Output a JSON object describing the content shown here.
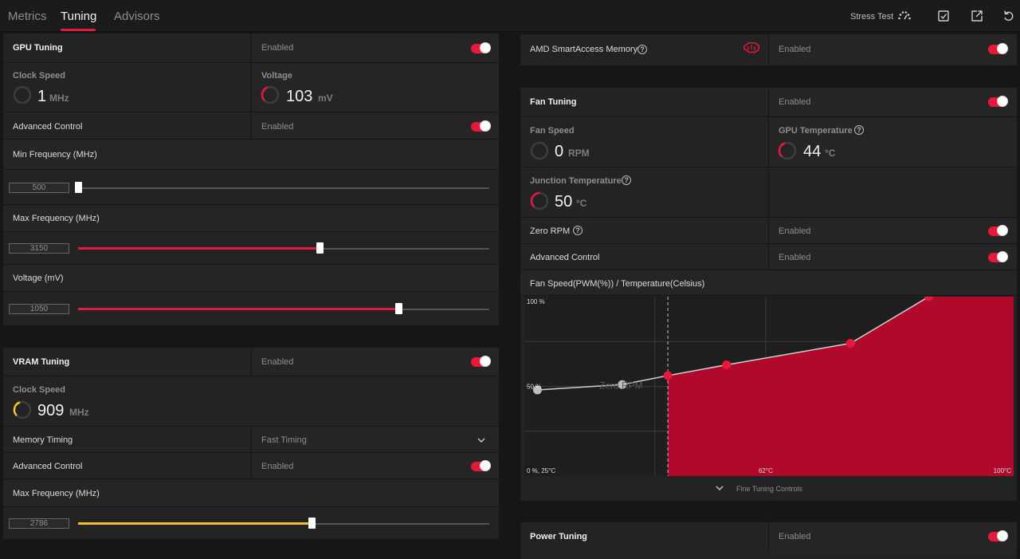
{
  "tabs": [
    "Metrics",
    "Tuning",
    "Advisors"
  ],
  "toolbar": {
    "stress_test": "Stress Test"
  },
  "gpu_tuning": {
    "title": "GPU Tuning",
    "status": "Enabled",
    "clock_label": "Clock Speed",
    "clock_value": "1",
    "clock_unit": "MHz",
    "voltage_label": "Voltage",
    "voltage_value": "103",
    "voltage_unit": "mV",
    "advanced_label": "Advanced Control",
    "advanced_status": "Enabled",
    "min_freq_label": "Min Frequency (MHz)",
    "min_freq_value": "500",
    "min_freq_fraction": 0.0,
    "max_freq_label": "Max Frequency (MHz)",
    "max_freq_value": "3150",
    "max_freq_fraction": 0.588,
    "voltage_slider_label": "Voltage (mV)",
    "voltage_slider_value": "1050",
    "voltage_slider_fraction": 0.779
  },
  "vram_tuning": {
    "title": "VRAM Tuning",
    "status": "Enabled",
    "clock_label": "Clock Speed",
    "clock_value": "909",
    "clock_unit": "MHz",
    "memory_timing_label": "Memory Timing",
    "memory_timing_value": "Fast Timing",
    "advanced_label": "Advanced Control",
    "advanced_status": "Enabled",
    "max_freq_label": "Max Frequency (MHz)",
    "max_freq_value": "2786",
    "max_freq_fraction": 0.568
  },
  "smart_access": {
    "label": "AMD SmartAccess Memory",
    "status": "Enabled"
  },
  "fan_tuning": {
    "title": "Fan Tuning",
    "status": "Enabled",
    "fan_speed_label": "Fan Speed",
    "fan_speed_value": "0",
    "fan_speed_unit": "RPM",
    "gpu_temp_label": "GPU Temperature",
    "gpu_temp_value": "44",
    "gpu_temp_unit": "°C",
    "junction_label": "Junction Temperature",
    "junction_value": "50",
    "junction_unit": "°C",
    "zero_rpm_label": "Zero RPM",
    "zero_rpm_status": "Enabled",
    "advanced_label": "Advanced Control",
    "advanced_status": "Enabled",
    "curve_title": "Fan Speed(PWM(%)) / Temperature(Celsius)",
    "fine_tuning": "Fine Tuning Controls"
  },
  "chart_data": {
    "type": "area",
    "title": "Fan Speed(PWM(%)) / Temperature(Celsius)",
    "x_unit": "°C",
    "y_unit": "%",
    "xlim": [
      25,
      100
    ],
    "ylim": [
      0,
      100
    ],
    "tick_labels": [
      "100 %",
      "50 %",
      "0 %, 25°C",
      "62°C",
      "100°C"
    ],
    "zero_rpm_label": "Zero RPM",
    "zero_rpm_threshold": 47,
    "points": [
      {
        "x": 27,
        "y": 48,
        "zone": "zero-rpm"
      },
      {
        "x": 40,
        "y": 51,
        "zone": "zero-rpm"
      },
      {
        "x": 47,
        "y": 56,
        "zone": "active"
      },
      {
        "x": 56,
        "y": 62,
        "zone": "active"
      },
      {
        "x": 75,
        "y": 74,
        "zone": "active"
      },
      {
        "x": 87,
        "y": 100,
        "zone": "active"
      }
    ],
    "fill_color": "#b0092b",
    "point_color": "#e4193b",
    "inactive_color": "#bdbdbd"
  },
  "power_tuning": {
    "title": "Power Tuning",
    "status": "Enabled"
  },
  "colors": {
    "accent": "#e4193b",
    "vram_accent": "#f2c12e",
    "panel": "#232323"
  }
}
